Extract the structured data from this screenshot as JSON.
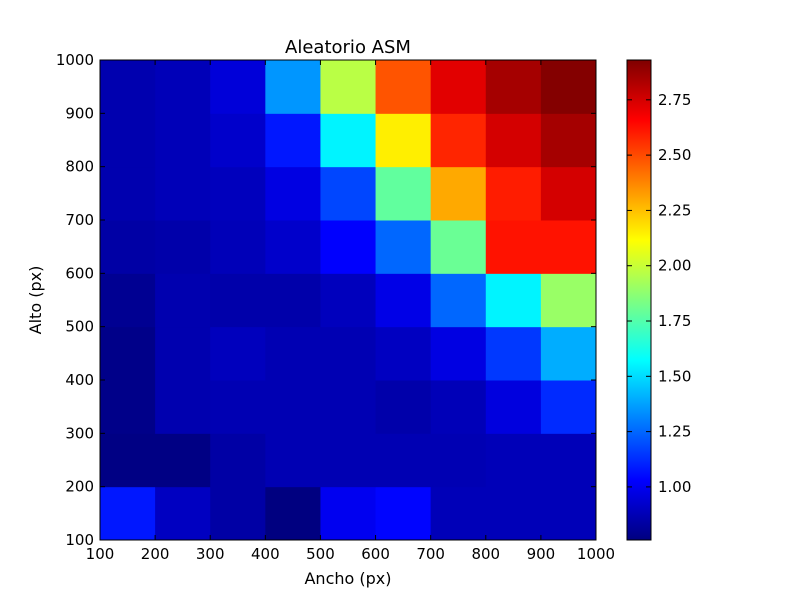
{
  "chart_data": {
    "type": "heatmap",
    "title": "Aleatorio ASM",
    "xlabel": "Ancho (px)",
    "ylabel": "Alto (px)",
    "x_edges": [
      100,
      200,
      300,
      400,
      500,
      600,
      700,
      800,
      900,
      1000
    ],
    "y_edges": [
      100,
      200,
      300,
      400,
      500,
      600,
      700,
      800,
      900,
      1000
    ],
    "xlim": [
      100,
      1000
    ],
    "ylim": [
      100,
      1000
    ],
    "x_ticks": [
      "100",
      "200",
      "300",
      "400",
      "500",
      "600",
      "700",
      "800",
      "900",
      "1000"
    ],
    "y_ticks": [
      "100",
      "200",
      "300",
      "400",
      "500",
      "600",
      "700",
      "800",
      "900",
      "1000"
    ],
    "values": [
      [
        1.08,
        0.9,
        0.84,
        0.76,
        1.0,
        1.04,
        0.88,
        0.88,
        0.88
      ],
      [
        0.77,
        0.77,
        0.84,
        0.87,
        0.87,
        0.87,
        0.87,
        0.88,
        0.88
      ],
      [
        0.78,
        0.86,
        0.87,
        0.87,
        0.87,
        0.85,
        0.88,
        0.96,
        1.12
      ],
      [
        0.78,
        0.86,
        0.89,
        0.87,
        0.87,
        0.9,
        0.97,
        1.15,
        1.4
      ],
      [
        0.8,
        0.86,
        0.85,
        0.85,
        0.89,
        0.98,
        1.25,
        1.55,
        1.9
      ],
      [
        0.84,
        0.85,
        0.88,
        0.92,
        1.03,
        1.25,
        1.8,
        2.62,
        2.62
      ],
      [
        0.86,
        0.88,
        0.89,
        0.97,
        1.18,
        1.78,
        2.3,
        2.6,
        2.75
      ],
      [
        0.86,
        0.88,
        0.92,
        1.08,
        1.55,
        2.15,
        2.58,
        2.75,
        2.85
      ],
      [
        0.86,
        0.88,
        0.95,
        1.35,
        1.97,
        2.48,
        2.72,
        2.85,
        2.92
      ]
    ],
    "colormap": "jet",
    "color_range": [
      0.76,
      2.93
    ],
    "colorbar_ticks": [
      "1.00",
      "1.25",
      "1.50",
      "1.75",
      "2.00",
      "2.25",
      "2.50",
      "2.75"
    ],
    "colorbar_tick_values": [
      1.0,
      1.25,
      1.5,
      1.75,
      2.0,
      2.25,
      2.5,
      2.75
    ],
    "grid": false
  }
}
